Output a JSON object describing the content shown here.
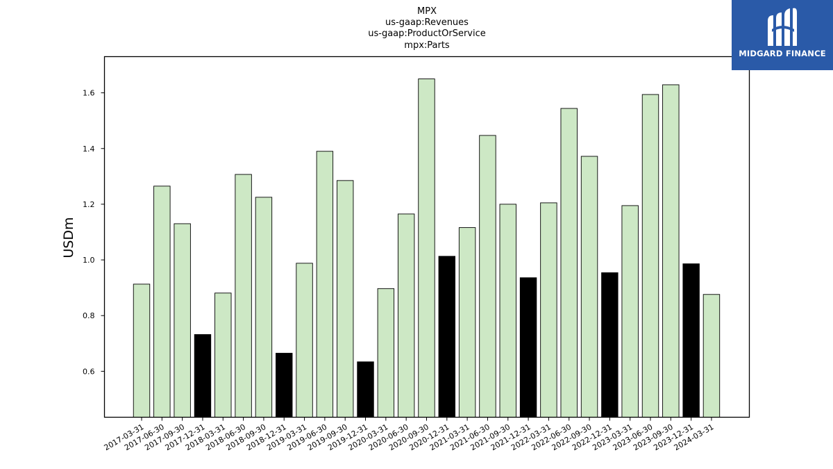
{
  "chart_data": {
    "type": "bar",
    "title_lines": [
      "MPX",
      "us-gaap:Revenues",
      "us-gaap:ProductOrService",
      "mpx:Parts"
    ],
    "xlabel": "",
    "ylabel": "USDm",
    "ylim": [
      0.435,
      1.73
    ],
    "yticks": [
      "0.6",
      "0.8",
      "1.0",
      "1.2",
      "1.4",
      "1.6"
    ],
    "categories": [
      "2017-03-31",
      "2017-06-30",
      "2017-09-30",
      "2017-12-31",
      "2018-03-31",
      "2018-06-30",
      "2018-09-30",
      "2018-12-31",
      "2019-03-31",
      "2019-06-30",
      "2019-09-30",
      "2019-12-31",
      "2020-03-31",
      "2020-06-30",
      "2020-09-30",
      "2020-12-31",
      "2021-03-31",
      "2021-06-30",
      "2021-09-30",
      "2021-12-31",
      "2022-03-31",
      "2022-06-30",
      "2022-09-30",
      "2022-12-31",
      "2023-03-31",
      "2023-06-30",
      "2023-09-30",
      "2023-12-31",
      "2024-03-31"
    ],
    "values": [
      0.913,
      1.265,
      1.13,
      0.732,
      0.881,
      1.307,
      1.225,
      0.665,
      0.988,
      1.39,
      1.285,
      0.634,
      0.897,
      1.165,
      1.65,
      1.013,
      1.116,
      1.447,
      1.2,
      0.936,
      1.205,
      1.544,
      1.372,
      0.954,
      1.195,
      1.594,
      1.629,
      0.986,
      0.876
    ],
    "bar_colors": [
      "#cde8c5",
      "#cde8c5",
      "#cde8c5",
      "#000000",
      "#cde8c5",
      "#cde8c5",
      "#cde8c5",
      "#000000",
      "#cde8c5",
      "#cde8c5",
      "#cde8c5",
      "#000000",
      "#cde8c5",
      "#cde8c5",
      "#cde8c5",
      "#000000",
      "#cde8c5",
      "#cde8c5",
      "#cde8c5",
      "#000000",
      "#cde8c5",
      "#cde8c5",
      "#cde8c5",
      "#000000",
      "#cde8c5",
      "#cde8c5",
      "#cde8c5",
      "#000000",
      "#cde8c5"
    ],
    "grid": false,
    "legend": "none"
  },
  "logo": {
    "text": "MIDGARD FINANCE",
    "background": "#2a5aa8",
    "icon": "midgard-logo-icon"
  }
}
